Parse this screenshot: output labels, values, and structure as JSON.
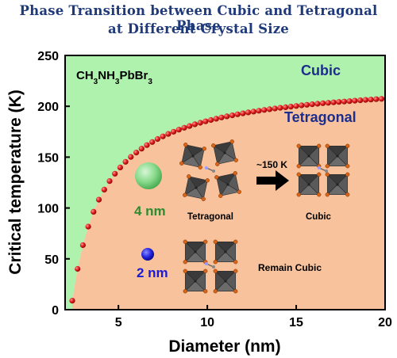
{
  "title_lines": [
    "Phase Transition between Cubic and Tetragonal Phase",
    "at Different Crystal Size"
  ],
  "chart_data": {
    "type": "scatter",
    "title": "Phase Transition between Cubic and Tetragonal Phase at Different Crystal Size",
    "xlabel": "Diameter (nm)",
    "ylabel": "Critical temperature (K)",
    "xlim": [
      2,
      20
    ],
    "ylim": [
      0,
      250
    ],
    "xticks": [
      "5",
      "10",
      "15",
      "20"
    ],
    "yticks": [
      "0",
      "50",
      "100",
      "150",
      "200",
      "250"
    ],
    "series": [
      {
        "marker_color": "#e01b1b",
        "x": [
          2.4,
          2.7,
          3.0,
          3.3,
          3.6,
          3.9,
          4.2,
          4.5,
          4.8,
          5.1,
          5.4,
          5.7,
          6.0,
          6.3,
          6.6,
          6.9,
          7.2,
          7.5,
          7.8,
          8.1,
          8.4,
          8.7,
          9.0,
          9.3,
          9.6,
          9.9,
          10.2,
          10.5,
          10.8,
          11.1,
          11.4,
          11.7,
          12.0,
          12.3,
          12.6,
          12.9,
          13.2,
          13.5,
          13.8,
          14.1,
          14.4,
          14.7,
          15.0,
          15.3,
          15.6,
          15.9,
          16.2,
          16.5,
          16.8,
          17.1,
          17.4,
          17.7,
          18.0,
          18.3,
          18.6,
          18.9,
          19.2,
          19.5,
          19.8
        ],
        "y": [
          8.9,
          40.1,
          63.5,
          81.7,
          96.3,
          108.2,
          118.1,
          126.5,
          133.7,
          139.9,
          145.4,
          150.2,
          154.5,
          158.3,
          161.8,
          164.9,
          167.8,
          170.4,
          172.8,
          175.0,
          177.0,
          178.9,
          180.6,
          182.3,
          183.8,
          185.2,
          186.5,
          187.8,
          189.0,
          190.1,
          191.1,
          192.1,
          193.1,
          194.0,
          194.8,
          195.6,
          196.4,
          197.1,
          197.8,
          198.5,
          199.1,
          199.7,
          200.3,
          200.9,
          201.5,
          202.0,
          202.5,
          203.0,
          203.4,
          203.9,
          204.3,
          204.7,
          205.1,
          205.5,
          205.9,
          206.3,
          206.6,
          207.0,
          207.3
        ]
      }
    ],
    "regions": {
      "above_curve": {
        "label": "Cubic",
        "color": "#aef2ad"
      },
      "below_curve": {
        "label": "Tetragonal",
        "color": "#f7c29c"
      }
    },
    "annotations": {
      "formula": "CH3NH3PbBr3",
      "size_4nm": "4 nm",
      "size_2nm": "2 nm",
      "tetragonal_label": "Tetragonal",
      "cubic_label": "Cubic",
      "transition_temp": "~150 K",
      "remain_cubic": "Remain Cubic"
    },
    "colors": {
      "region_label": "#1d2d8c",
      "size_4nm": "#2e8b2e",
      "size_2nm": "#1a1ad6",
      "title": "#1f3a7a",
      "curve": "#e01b1b"
    }
  }
}
